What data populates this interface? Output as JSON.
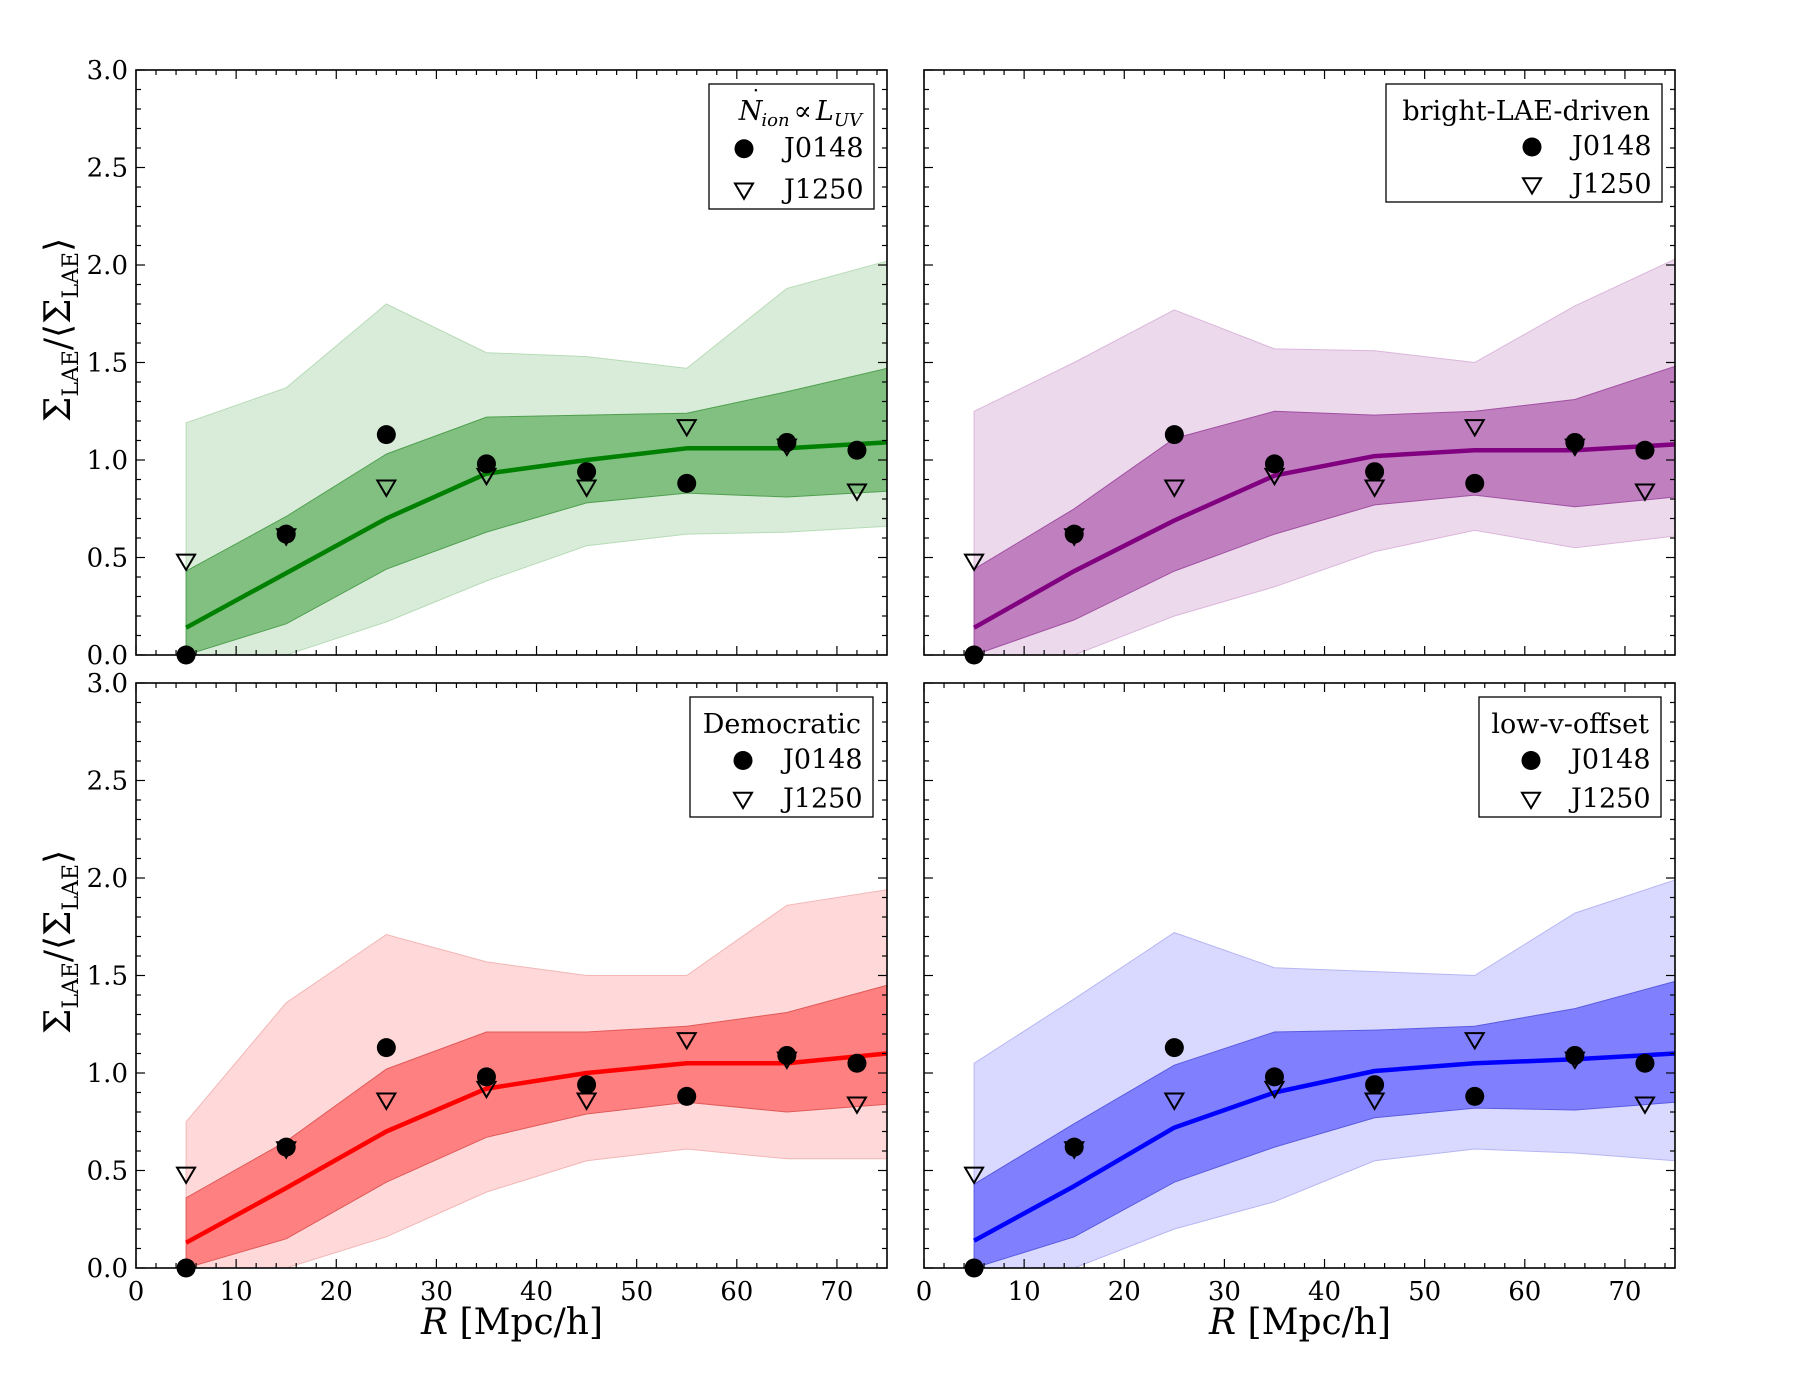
{
  "chart_data": [
    {
      "type": "line",
      "panel": "top-left",
      "legend_title": "Ṅion ∝ LUV",
      "legend_title_parts": {
        "n": "N",
        "dot": "˙",
        "sub1": "ion",
        "prop": "∝",
        "l": "L",
        "sub2": "UV"
      },
      "legend_entries": [
        "J0148",
        "J1250"
      ],
      "legend_position": "top-right",
      "color_line": "#008000",
      "color_inner": "#82c082",
      "color_outer": "#d9ecd9",
      "color_inner_edge": "#4f9f4f",
      "color_outer_edge": "#b7dbb7",
      "x": [
        5,
        15,
        25,
        35,
        45,
        55,
        65,
        75
      ],
      "median": [
        0.14,
        0.42,
        0.7,
        0.93,
        1.0,
        1.06,
        1.06,
        1.09
      ],
      "inner_low": [
        0.0,
        0.16,
        0.44,
        0.63,
        0.78,
        0.83,
        0.81,
        0.84
      ],
      "inner_high": [
        0.43,
        0.71,
        1.03,
        1.22,
        1.23,
        1.24,
        1.35,
        1.47
      ],
      "outer_low": [
        0.0,
        0.0,
        0.17,
        0.38,
        0.56,
        0.62,
        0.63,
        0.66
      ],
      "outer_high": [
        1.19,
        1.37,
        1.8,
        1.55,
        1.53,
        1.47,
        1.88,
        2.02
      ],
      "J0148": {
        "x": [
          5,
          15,
          25,
          35,
          45,
          55,
          65,
          72
        ],
        "y": [
          0.0,
          0.62,
          1.13,
          0.98,
          0.94,
          0.88,
          1.09,
          1.05
        ]
      },
      "J1250": {
        "x": [
          5,
          15,
          25,
          35,
          45,
          55,
          65,
          72
        ],
        "y": [
          0.48,
          0.61,
          0.86,
          0.92,
          0.86,
          1.17,
          1.07,
          0.84
        ]
      },
      "xlim": [
        0,
        75
      ],
      "ylim": [
        0,
        3
      ]
    },
    {
      "type": "line",
      "panel": "top-right",
      "legend_title": "bright-LAE-driven",
      "legend_entries": [
        "J0148",
        "J1250"
      ],
      "legend_position": "top-right",
      "color_line": "#800080",
      "color_inner": "#c080c0",
      "color_outer": "#ecd9ec",
      "color_inner_edge": "#a050a0",
      "color_outer_edge": "#dbb7db",
      "x": [
        5,
        15,
        25,
        35,
        45,
        55,
        65,
        75
      ],
      "median": [
        0.14,
        0.43,
        0.69,
        0.92,
        1.02,
        1.05,
        1.05,
        1.08
      ],
      "inner_low": [
        0.0,
        0.18,
        0.43,
        0.62,
        0.77,
        0.82,
        0.76,
        0.81
      ],
      "inner_high": [
        0.44,
        0.75,
        1.11,
        1.25,
        1.23,
        1.25,
        1.31,
        1.48
      ],
      "outer_low": [
        0.0,
        0.0,
        0.2,
        0.35,
        0.53,
        0.64,
        0.55,
        0.61
      ],
      "outer_high": [
        1.25,
        1.5,
        1.77,
        1.57,
        1.56,
        1.5,
        1.79,
        2.03
      ],
      "J0148": {
        "x": [
          5,
          15,
          25,
          35,
          45,
          55,
          65,
          72
        ],
        "y": [
          0.0,
          0.62,
          1.13,
          0.98,
          0.94,
          0.88,
          1.09,
          1.05
        ]
      },
      "J1250": {
        "x": [
          5,
          15,
          25,
          35,
          45,
          55,
          65,
          72
        ],
        "y": [
          0.48,
          0.61,
          0.86,
          0.92,
          0.86,
          1.17,
          1.07,
          0.84
        ]
      },
      "xlim": [
        0,
        75
      ],
      "ylim": [
        0,
        3
      ]
    },
    {
      "type": "line",
      "panel": "bottom-left",
      "legend_title": "Democratic",
      "legend_entries": [
        "J0148",
        "J1250"
      ],
      "legend_position": "top-right",
      "color_line": "#ff0000",
      "color_inner": "#ff8080",
      "color_outer": "#ffd9d9",
      "color_inner_edge": "#e05a5a",
      "color_outer_edge": "#f3b6b6",
      "x": [
        5,
        15,
        25,
        35,
        45,
        55,
        65,
        75
      ],
      "median": [
        0.13,
        0.41,
        0.7,
        0.92,
        1.0,
        1.05,
        1.05,
        1.1
      ],
      "inner_low": [
        0.0,
        0.15,
        0.44,
        0.67,
        0.79,
        0.85,
        0.8,
        0.84
      ],
      "inner_high": [
        0.36,
        0.65,
        1.02,
        1.21,
        1.21,
        1.24,
        1.31,
        1.45
      ],
      "outer_low": [
        0.0,
        0.0,
        0.16,
        0.39,
        0.55,
        0.61,
        0.56,
        0.56
      ],
      "outer_high": [
        0.75,
        1.36,
        1.71,
        1.57,
        1.5,
        1.5,
        1.86,
        1.94
      ],
      "J0148": {
        "x": [
          5,
          15,
          25,
          35,
          45,
          55,
          65,
          72
        ],
        "y": [
          0.0,
          0.62,
          1.13,
          0.98,
          0.94,
          0.88,
          1.09,
          1.05
        ]
      },
      "J1250": {
        "x": [
          5,
          15,
          25,
          35,
          45,
          55,
          65,
          72
        ],
        "y": [
          0.48,
          0.61,
          0.86,
          0.92,
          0.86,
          1.17,
          1.07,
          0.84
        ]
      },
      "xlim": [
        0,
        75
      ],
      "ylim": [
        0,
        3
      ]
    },
    {
      "type": "line",
      "panel": "bottom-right",
      "legend_title": "low-v-offset",
      "legend_entries": [
        "J0148",
        "J1250"
      ],
      "legend_position": "top-right",
      "color_line": "#0000ff",
      "color_inner": "#8080ff",
      "color_outer": "#d9d9ff",
      "color_inner_edge": "#5a5ae0",
      "color_outer_edge": "#b6b6f3",
      "x": [
        5,
        15,
        25,
        35,
        45,
        55,
        65,
        75
      ],
      "median": [
        0.14,
        0.42,
        0.72,
        0.9,
        1.01,
        1.05,
        1.07,
        1.1
      ],
      "inner_low": [
        0.0,
        0.16,
        0.44,
        0.62,
        0.77,
        0.82,
        0.81,
        0.85
      ],
      "inner_high": [
        0.43,
        0.74,
        1.04,
        1.21,
        1.22,
        1.24,
        1.33,
        1.47
      ],
      "outer_low": [
        0.0,
        0.0,
        0.2,
        0.34,
        0.55,
        0.61,
        0.59,
        0.55
      ],
      "outer_high": [
        1.05,
        1.38,
        1.72,
        1.54,
        1.52,
        1.5,
        1.82,
        1.99
      ],
      "J0148": {
        "x": [
          5,
          15,
          25,
          35,
          45,
          55,
          65,
          72
        ],
        "y": [
          0.0,
          0.62,
          1.13,
          0.98,
          0.94,
          0.88,
          1.09,
          1.05
        ]
      },
      "J1250": {
        "x": [
          5,
          15,
          25,
          35,
          45,
          55,
          65,
          72
        ],
        "y": [
          0.48,
          0.61,
          0.86,
          0.92,
          0.86,
          1.17,
          1.07,
          0.84
        ]
      },
      "xlim": [
        0,
        75
      ],
      "ylim": [
        0,
        3
      ]
    }
  ],
  "axes": {
    "yticks": [
      "0.0",
      "0.5",
      "1.0",
      "1.5",
      "2.0",
      "2.5",
      "3.0"
    ],
    "xticks": [
      "0",
      "10",
      "20",
      "30",
      "40",
      "50",
      "60",
      "70"
    ],
    "ylabel": "ΣLAE/⟨ΣLAE⟩",
    "ylabel_parts": {
      "sigma": "Σ",
      "sub": "LAE",
      "slash": "/⟨",
      "close": "⟩"
    },
    "xlabel": "R [Mpc/h]",
    "xlabel_parts": {
      "var": "R",
      "unit": " [Mpc/h]"
    }
  }
}
